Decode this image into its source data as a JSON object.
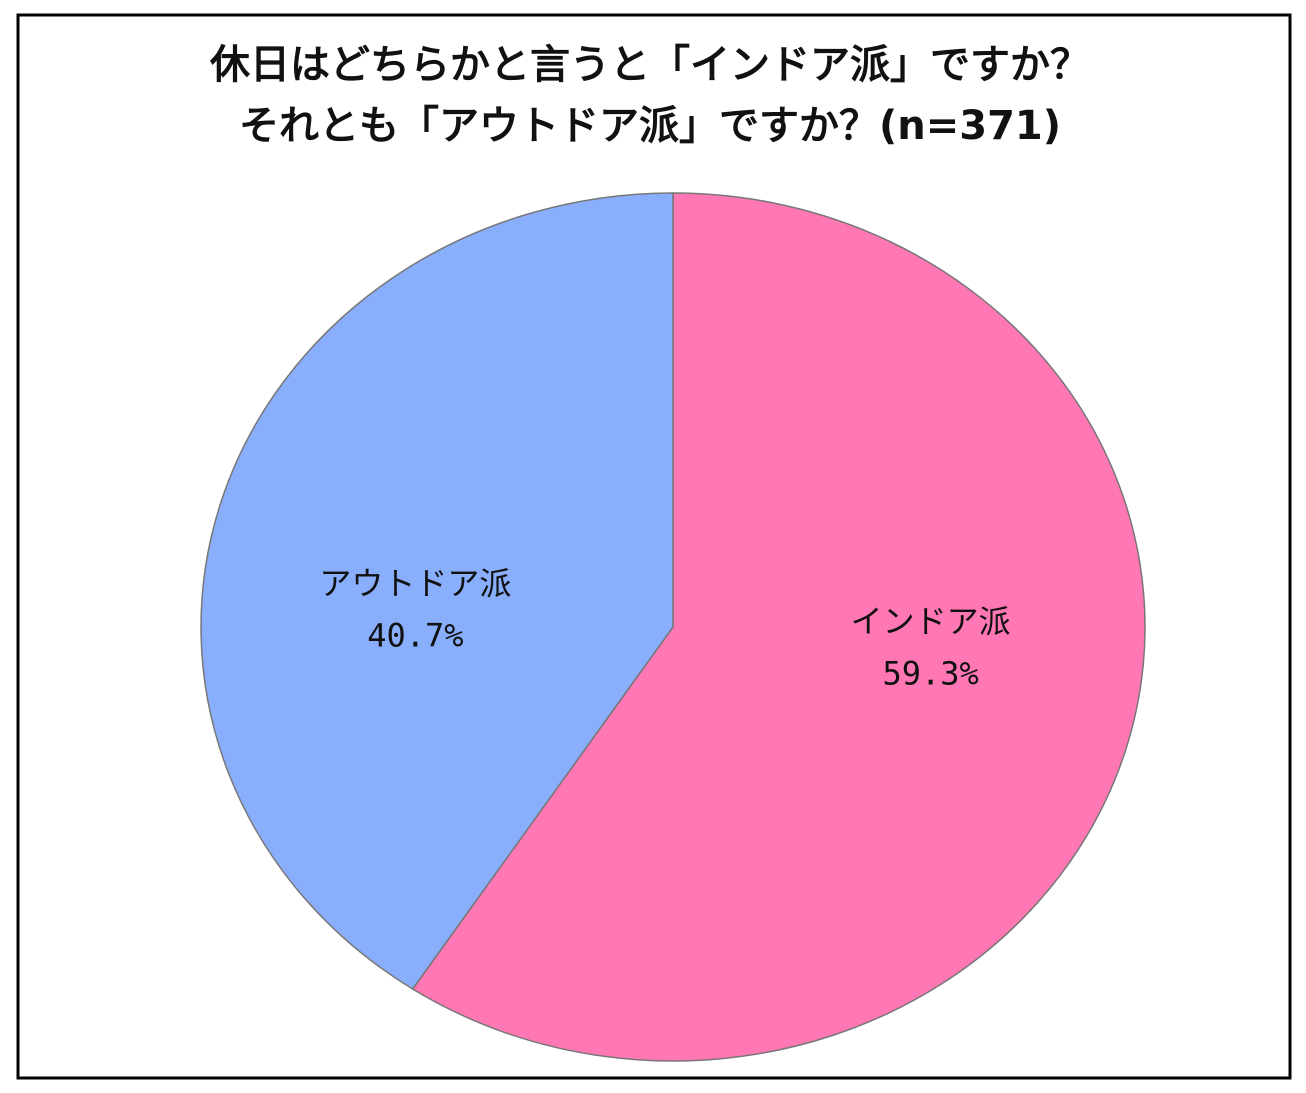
{
  "chart_data": {
    "type": "pie",
    "title": [
      "休日はどちらかと言うと「インドア派」ですか？",
      "それとも「アウトドア派」ですか？(n=371)"
    ],
    "categories": [
      "インドア派",
      "アウトドア派"
    ],
    "values": [
      59.3,
      40.7
    ],
    "value_labels": [
      "59.3%",
      "40.7%"
    ],
    "colors": [
      "#ff77b5",
      "#88aefc"
    ]
  }
}
